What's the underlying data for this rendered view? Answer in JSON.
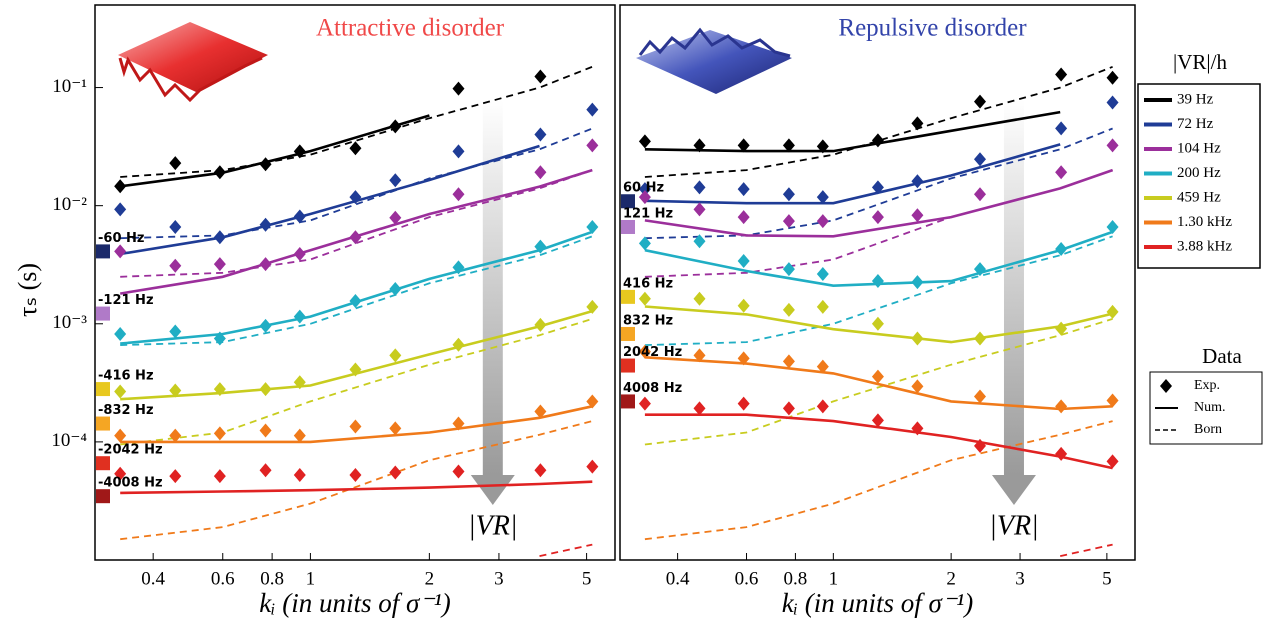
{
  "chart_data": [
    {
      "type": "scatter",
      "title": "Attractive disorder",
      "title_color": "#f04848",
      "ylabel": "τₛ (s)",
      "xlabel": "kᵢ (in units of σ⁻¹)",
      "arrow_label": "|VR|",
      "xscale": "log",
      "yscale": "log",
      "xlim": [
        0.285,
        5.9
      ],
      "ylim": [
        1e-05,
        0.5
      ],
      "xticks": [
        0.4,
        0.6,
        0.8,
        1,
        2,
        3,
        5
      ],
      "yticks": [
        {
          "value": 0.0001,
          "label": "10⁻⁴"
        },
        {
          "value": 0.001,
          "label": "10⁻³"
        },
        {
          "value": 0.01,
          "label": "10⁻²"
        },
        {
          "value": 0.1,
          "label": "10⁻¹"
        }
      ],
      "x": [
        0.33,
        0.455,
        0.59,
        0.77,
        0.94,
        1.3,
        1.64,
        2.37,
        3.82,
        5.17
      ],
      "theory_x": [
        0.33,
        0.6,
        1,
        2,
        3.8,
        5.17
      ],
      "series": [
        {
          "name": "39 Hz",
          "color": "#000000",
          "values": [
            0.0146,
            0.0229,
            0.0192,
            0.0224,
            0.0288,
            0.0306,
            0.0469,
            0.098,
            0.124,
            null
          ],
          "num": [
            0.0146,
            0.019,
            0.029,
            0.058,
            null,
            null
          ],
          "born": [
            0.0175,
            0.02,
            0.027,
            0.055,
            0.1,
            0.15
          ]
        },
        {
          "name": "72 Hz",
          "color": "#1f3c96",
          "values": [
            0.0093,
            0.0066,
            0.0054,
            0.0069,
            0.0081,
            0.0118,
            0.0164,
            0.0288,
            0.04,
            0.065
          ],
          "num": [
            0.0039,
            0.0054,
            0.0085,
            0.0165,
            0.032,
            null
          ],
          "born": [
            0.0053,
            0.0056,
            0.0075,
            0.017,
            0.03,
            0.045
          ]
        },
        {
          "name": "104 Hz",
          "color": "#9b2f9b",
          "values": [
            0.0041,
            0.0031,
            0.0032,
            0.0032,
            0.0039,
            0.0054,
            0.0079,
            0.0125,
            0.0192,
            0.0324
          ],
          "num": [
            0.0018,
            0.0025,
            0.0042,
            0.0085,
            0.0145,
            0.02
          ],
          "born": [
            0.0025,
            0.0027,
            0.0035,
            0.008,
            0.014,
            0.02
          ]
        },
        {
          "name": "200 Hz",
          "color": "#20aec4",
          "values": [
            0.00082,
            0.00086,
            0.00075,
            0.00096,
            0.00115,
            0.00156,
            0.00197,
            0.003,
            0.0045,
            0.0066
          ],
          "num": [
            0.00068,
            0.00082,
            0.00115,
            0.0024,
            0.0042,
            0.006
          ],
          "born": [
            0.00066,
            0.0007,
            0.001,
            0.0022,
            0.0038,
            0.0055
          ]
        },
        {
          "name": "459 Hz",
          "color": "#c8cc1f",
          "values": [
            0.000267,
            0.000272,
            0.00028,
            0.00028,
            0.00032,
            0.00041,
            0.00054,
            0.000665,
            0.00098,
            0.00139
          ],
          "num": [
            0.00023,
            0.00026,
            0.0003,
            0.00055,
            0.00095,
            0.00128
          ],
          "born": [
            9.5e-05,
            0.00012,
            0.00022,
            0.00045,
            0.0008,
            0.0011
          ]
        },
        {
          "name": "1.30 kHz",
          "color": "#f07a1a",
          "values": [
            0.000113,
            0.000113,
            0.000118,
            0.000125,
            0.000113,
            0.000135,
            0.00013,
            0.000143,
            0.000181,
            0.00022
          ],
          "num": [
            0.0001,
            0.0001,
            0.0001,
            0.00012,
            0.00016,
            0.0002
          ],
          "born": [
            1.5e-05,
            1.9e-05,
            3e-05,
            7e-05,
            0.000115,
            0.00015
          ]
        },
        {
          "name": "3.88 kHz",
          "color": "#e02222",
          "values": [
            5.37e-05,
            5.13e-05,
            5.13e-05,
            5.75e-05,
            5.25e-05,
            5.25e-05,
            5.5e-05,
            5.62e-05,
            5.75e-05,
            6.17e-05
          ],
          "num": [
            3.7e-05,
            3.8e-05,
            3.9e-05,
            4.1e-05,
            4.4e-05,
            4.6e-05
          ],
          "born": [
            null,
            null,
            null,
            null,
            1.08e-05,
            1.35e-05
          ]
        }
      ],
      "level_markers": [
        {
          "label": "-60 Hz",
          "value": 0.0041,
          "color": "#1b2a6b"
        },
        {
          "label": "-121 Hz",
          "value": 0.00122,
          "color": "#b07ac8"
        },
        {
          "label": "-416 Hz",
          "value": 0.00028,
          "color": "#e8c81f"
        },
        {
          "label": "-832 Hz",
          "value": 0.000143,
          "color": "#f5a623"
        },
        {
          "label": "-2042 Hz",
          "value": 6.6e-05,
          "color": "#e03020"
        },
        {
          "label": "-4008 Hz",
          "value": 3.47e-05,
          "color": "#a01818"
        }
      ]
    },
    {
      "type": "scatter",
      "title": "Repulsive disorder",
      "title_color": "#3344aa",
      "xlabel": "kᵢ (in units of σ⁻¹)",
      "arrow_label": "|VR|",
      "xscale": "log",
      "yscale": "log",
      "xlim": [
        0.285,
        5.9
      ],
      "ylim": [
        1e-05,
        0.5
      ],
      "xticks": [
        0.4,
        0.6,
        0.8,
        1,
        2,
        3,
        5
      ],
      "x": [
        0.33,
        0.455,
        0.59,
        0.77,
        0.94,
        1.3,
        1.64,
        2.37,
        3.82,
        5.17
      ],
      "theory_x": [
        0.33,
        0.6,
        1,
        2,
        3.8,
        5.17
      ],
      "series": [
        {
          "color": "#000000",
          "values": [
            0.035,
            0.0324,
            0.0324,
            0.0324,
            0.0318,
            0.0357,
            0.0497,
            0.076,
            0.129,
            0.121
          ],
          "num": [
            0.03,
            0.029,
            0.029,
            0.043,
            0.062,
            null
          ],
          "born": [
            0.0175,
            0.02,
            0.027,
            0.055,
            0.1,
            0.15
          ]
        },
        {
          "color": "#1f3c96",
          "values": [
            0.0138,
            0.0143,
            0.0138,
            0.0125,
            0.0118,
            0.0143,
            0.0161,
            0.0247,
            0.0451,
            0.0747
          ],
          "num": [
            0.011,
            0.0105,
            0.0105,
            0.018,
            0.033,
            null
          ],
          "born": [
            0.0053,
            0.0056,
            0.0075,
            0.017,
            0.03,
            0.045
          ]
        },
        {
          "color": "#9b2f9b",
          "values": [
            0.0118,
            0.0093,
            0.008,
            0.0074,
            0.0074,
            0.008,
            0.0083,
            0.0125,
            0.0192,
            0.0324
          ],
          "num": [
            0.0075,
            0.0056,
            0.0055,
            0.008,
            0.014,
            0.02
          ],
          "born": [
            0.0025,
            0.0027,
            0.0035,
            0.008,
            0.014,
            0.02
          ]
        },
        {
          "color": "#20aec4",
          "values": [
            0.0048,
            0.005,
            0.0034,
            0.0029,
            0.00264,
            0.0023,
            0.00225,
            0.0029,
            0.0043,
            0.0066
          ],
          "num": [
            0.0042,
            0.0028,
            0.0021,
            0.0023,
            0.0042,
            0.006
          ],
          "born": [
            0.00066,
            0.0007,
            0.001,
            0.0022,
            0.0038,
            0.0055
          ]
        },
        {
          "color": "#c8cc1f",
          "values": [
            0.00163,
            0.00163,
            0.00142,
            0.00131,
            0.00139,
            0.001,
            0.00075,
            0.00075,
            0.00091,
            0.00126
          ],
          "num": [
            0.0014,
            0.0012,
            0.0009,
            0.0007,
            0.00095,
            0.00122
          ],
          "born": [
            9.5e-05,
            0.00012,
            0.00022,
            0.00045,
            0.0008,
            0.0011
          ]
        },
        {
          "color": "#f07a1a",
          "values": [
            0.00058,
            0.00054,
            0.00051,
            0.00048,
            0.000434,
            0.000357,
            0.000295,
            0.000242,
            0.0002,
            0.000224
          ],
          "num": [
            0.00052,
            0.00046,
            0.00038,
            0.00022,
            0.00019,
            0.0002
          ],
          "born": [
            1.5e-05,
            1.9e-05,
            3e-05,
            7e-05,
            0.000115,
            0.00015
          ]
        },
        {
          "color": "#e02222",
          "values": [
            0.000211,
            0.000192,
            0.000211,
            0.000192,
            0.0002,
            0.000152,
            0.00013,
            9.25e-05,
            7.92e-05,
            6.84e-05
          ],
          "num": [
            0.00017,
            0.00017,
            0.00015,
            0.00011,
            7.5e-05,
            6e-05
          ],
          "born": [
            null,
            null,
            null,
            null,
            1.08e-05,
            1.35e-05
          ]
        }
      ],
      "level_markers": [
        {
          "label": "60 Hz",
          "value": 0.0109,
          "color": "#1b2a6b"
        },
        {
          "label": "121 Hz",
          "value": 0.0066,
          "color": "#b07ac8"
        },
        {
          "label": "416 Hz",
          "value": 0.00169,
          "color": "#e8c81f"
        },
        {
          "label": "832 Hz",
          "value": 0.00082,
          "color": "#f5a623"
        },
        {
          "label": "2042 Hz",
          "value": 0.000443,
          "color": "#e03020"
        },
        {
          "label": "4008 Hz",
          "value": 0.00022,
          "color": "#a01818"
        }
      ]
    }
  ],
  "legend": {
    "title": "|VR|/h",
    "corner": "upper right"
  },
  "data_legend": {
    "title": "Data",
    "entries": [
      "Exp.",
      "Num.",
      "Born"
    ]
  }
}
